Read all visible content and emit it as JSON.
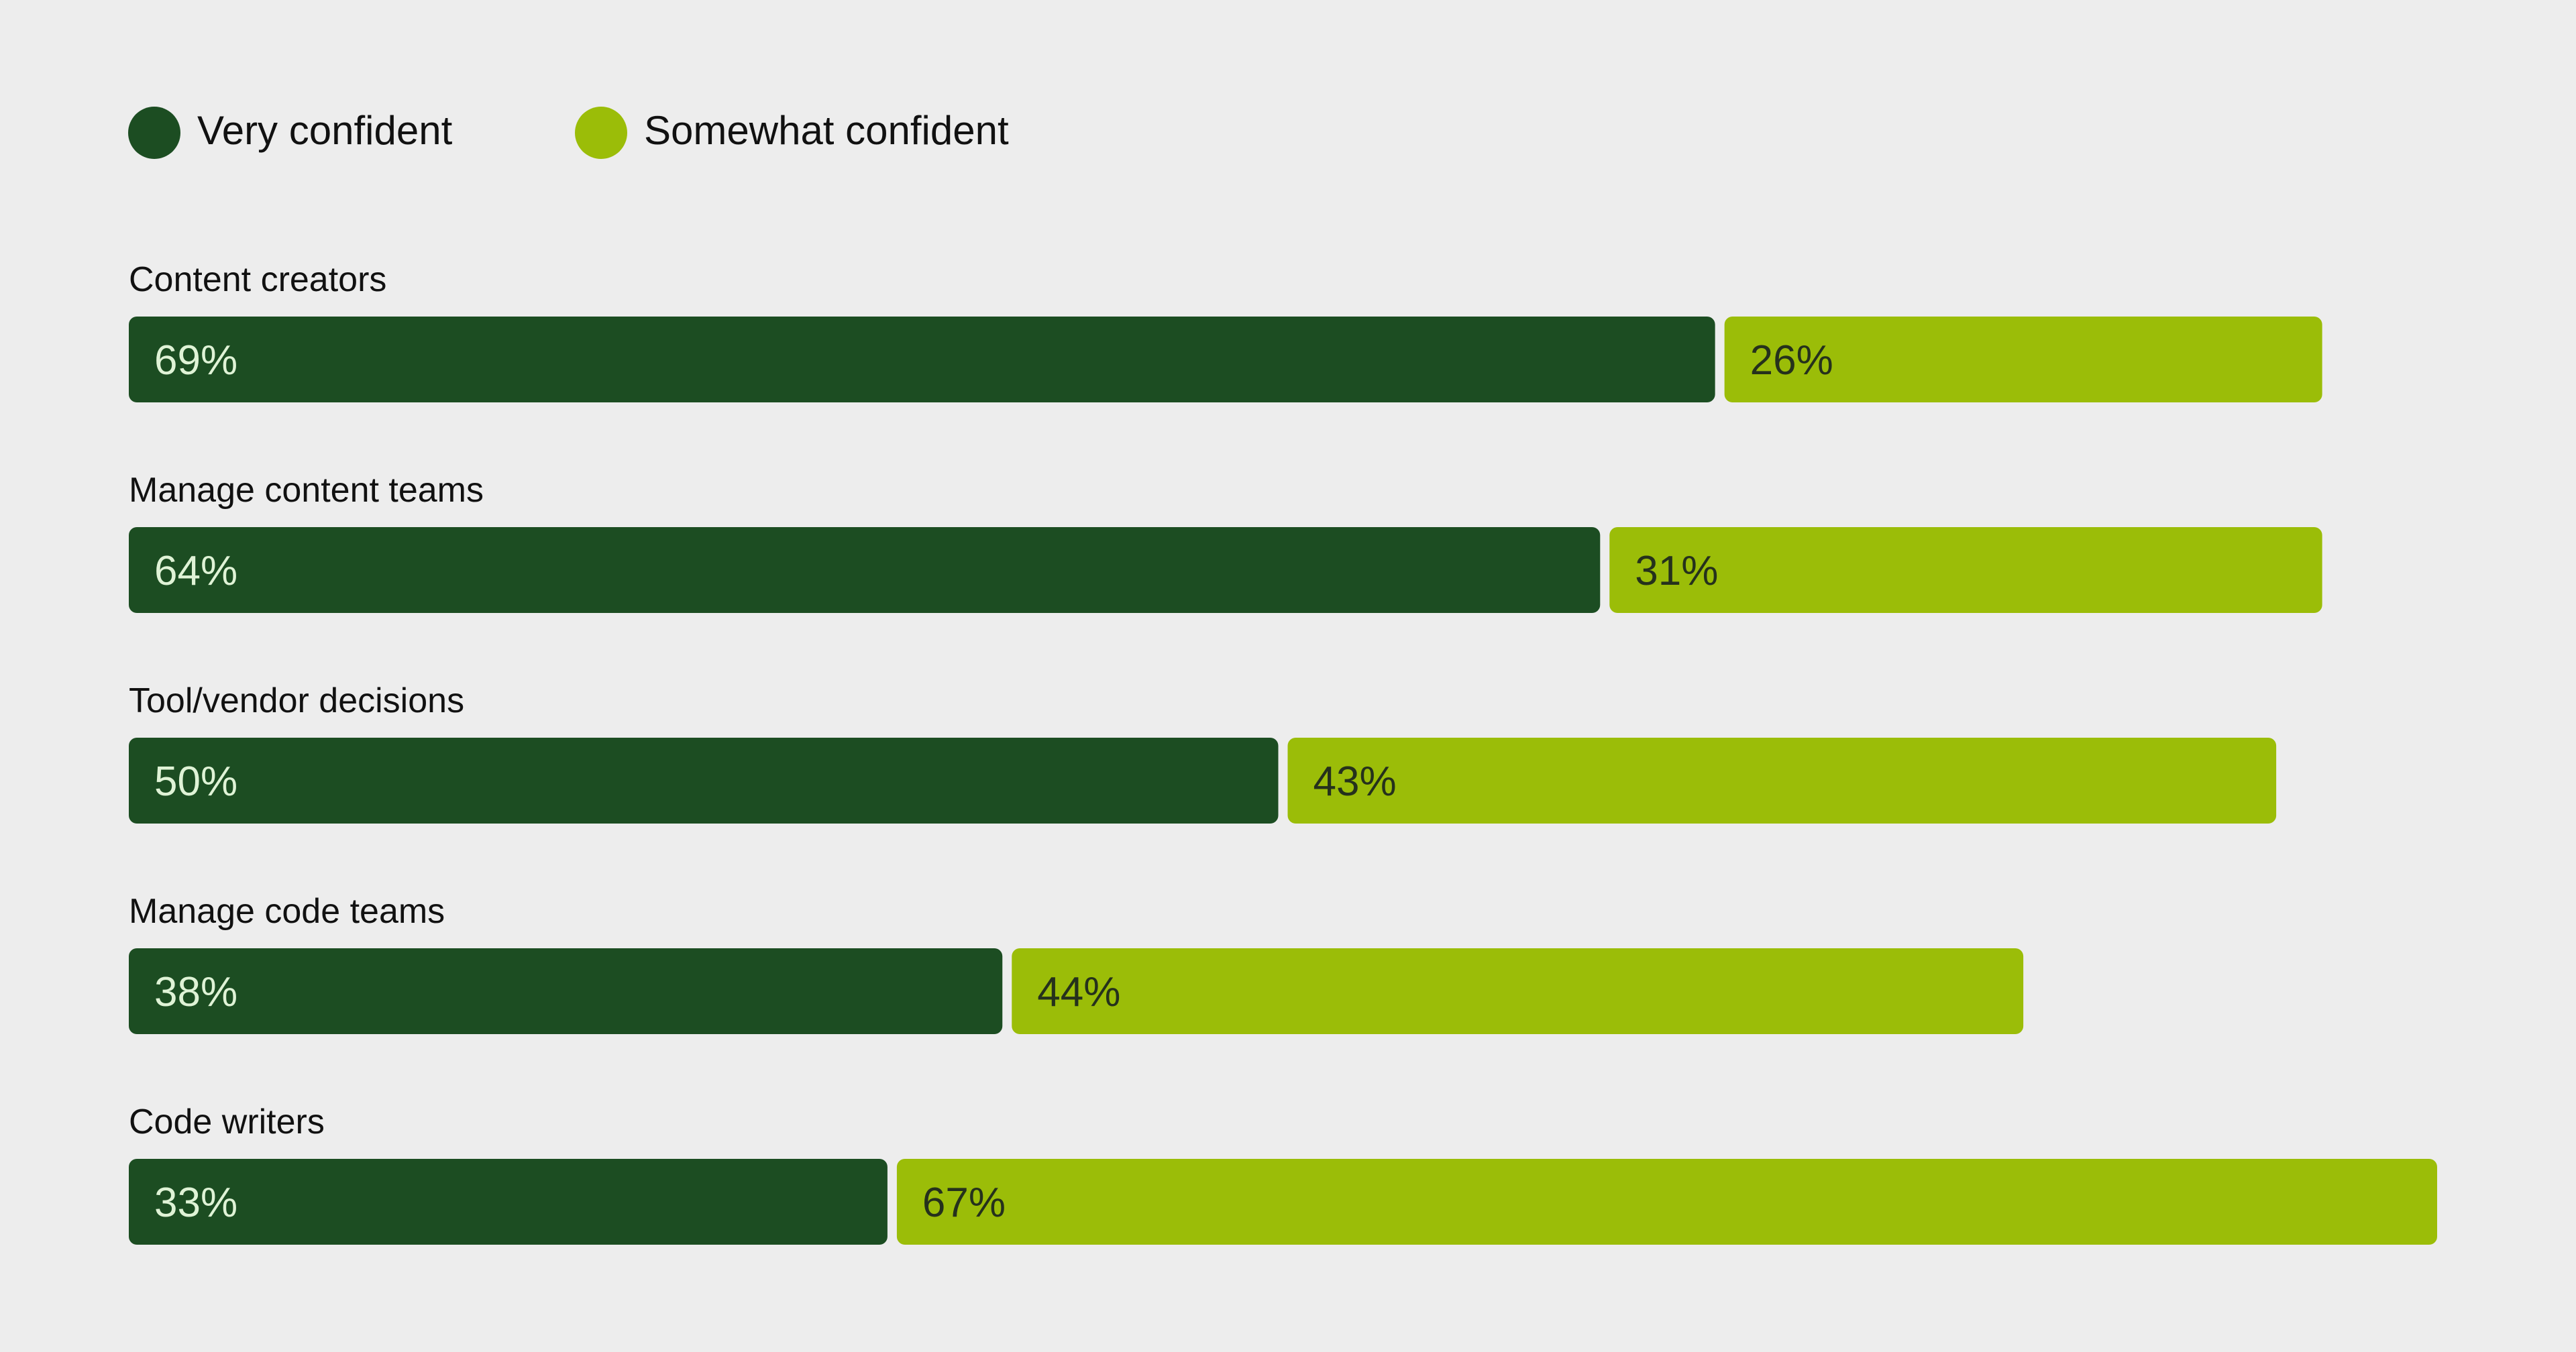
{
  "chart_data": {
    "type": "bar",
    "orientation": "horizontal",
    "stacked": true,
    "title": "",
    "xlabel": "",
    "ylabel": "",
    "xlim": [
      0,
      100
    ],
    "grid": false,
    "legend_position": "top-left",
    "value_suffix": "%",
    "categories": [
      "Content creators",
      "Manage content teams",
      "Tool/vendor decisions",
      "Manage code teams",
      "Code writers"
    ],
    "series": [
      {
        "name": "Very confident",
        "color": "#1c4d22",
        "label_color": "#dff3d6",
        "values": [
          69,
          64,
          50,
          38,
          33
        ]
      },
      {
        "name": "Somewhat confident",
        "color": "#9bbd08",
        "label_color": "#25311c",
        "values": [
          26,
          31,
          43,
          44,
          67
        ]
      }
    ]
  }
}
